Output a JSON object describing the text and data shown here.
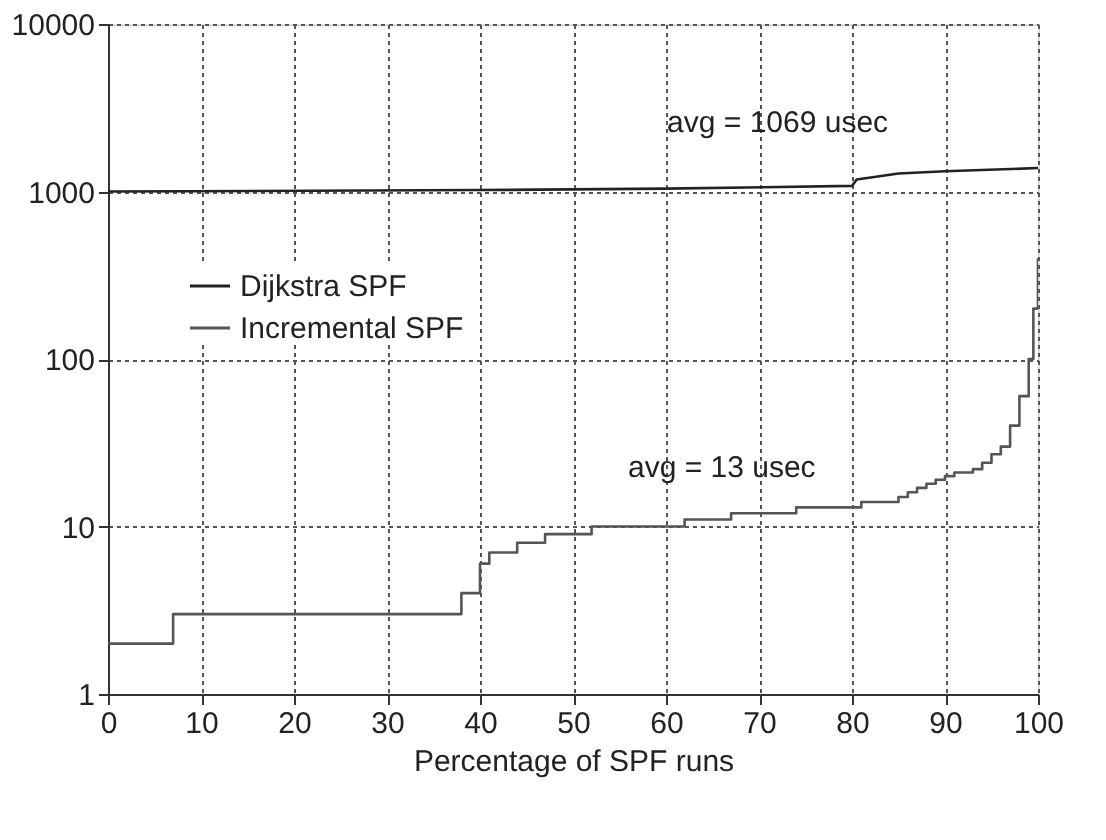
{
  "chart_data": {
    "type": "line",
    "xlabel": "Percentage of SPF runs",
    "log": "y",
    "grid": true,
    "legend": "left",
    "xlim": [
      0,
      100
    ],
    "xticks": [
      0,
      10,
      20,
      30,
      40,
      50,
      60,
      70,
      80,
      90,
      100
    ],
    "ylim": [
      1,
      10000
    ],
    "yticks": [
      1,
      10,
      100,
      1000,
      10000
    ],
    "series": [
      {
        "name": "Dijkstra SPF",
        "color": "#222222",
        "x": [
          0,
          40,
          60,
          80,
          80.5,
          85,
          90,
          100
        ],
        "values": [
          1000,
          1020,
          1040,
          1080,
          1180,
          1280,
          1320,
          1380
        ]
      },
      {
        "name": "Incremental SPF",
        "color": "#555555",
        "type": "step",
        "x": [
          0,
          7,
          38,
          40,
          41,
          44,
          47,
          52,
          62,
          67,
          74,
          81,
          85,
          86,
          87,
          88,
          89,
          90,
          91,
          93,
          94,
          95,
          96,
          97,
          98,
          99,
          99.5,
          100
        ],
        "values": [
          2,
          3,
          4,
          6,
          7,
          8,
          9,
          10,
          11,
          12,
          13,
          14,
          15,
          16,
          17,
          18,
          19,
          20,
          21,
          22,
          24,
          27,
          30,
          40,
          60,
          100,
          200,
          400
        ]
      }
    ],
    "annotations": [
      "avg = 1069 usec",
      "avg = 13 usec"
    ]
  }
}
